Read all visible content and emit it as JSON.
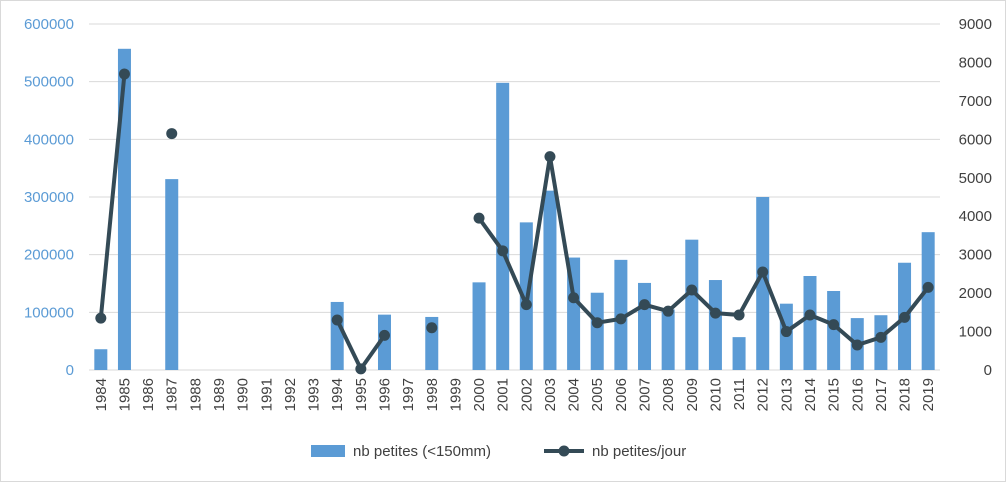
{
  "chart_data": {
    "type": "bar",
    "categories": [
      "1984",
      "1985",
      "1986",
      "1987",
      "1988",
      "1989",
      "1990",
      "1991",
      "1992",
      "1993",
      "1994",
      "1995",
      "1996",
      "1997",
      "1998",
      "1999",
      "2000",
      "2001",
      "2002",
      "2003",
      "2004",
      "2005",
      "2006",
      "2007",
      "2008",
      "2009",
      "2010",
      "2011",
      "2012",
      "2013",
      "2014",
      "2015",
      "2016",
      "2017",
      "2018",
      "2019"
    ],
    "series": [
      {
        "name": "nb petites (<150mm)",
        "type": "bar",
        "axis": "left",
        "color": "#5b9bd5",
        "values": [
          36000,
          557000,
          null,
          331000,
          null,
          null,
          null,
          null,
          null,
          null,
          118000,
          null,
          96000,
          null,
          92000,
          null,
          152000,
          498000,
          256000,
          311000,
          195000,
          134000,
          191000,
          151000,
          105000,
          226000,
          156000,
          57000,
          300000,
          115000,
          163000,
          137000,
          90000,
          95000,
          186000,
          239000
        ]
      },
      {
        "name": "nb petites/jour",
        "type": "line",
        "axis": "right",
        "color": "#344a56",
        "values": [
          1350,
          7700,
          null,
          6150,
          null,
          null,
          null,
          null,
          null,
          null,
          1300,
          30,
          900,
          null,
          1100,
          null,
          3950,
          3100,
          1700,
          5550,
          1880,
          1230,
          1330,
          1700,
          1530,
          2080,
          1480,
          1430,
          2550,
          1000,
          1430,
          1180,
          650,
          850,
          1370,
          2150
        ]
      }
    ],
    "y_left": {
      "min": 0,
      "max": 600000,
      "ticks": [
        0,
        100000,
        200000,
        300000,
        400000,
        500000,
        600000
      ]
    },
    "y_right": {
      "min": 0,
      "max": 9000,
      "ticks": [
        0,
        1000,
        2000,
        3000,
        4000,
        5000,
        6000,
        7000,
        8000,
        9000
      ]
    },
    "grid": true,
    "legend_position": "bottom"
  }
}
